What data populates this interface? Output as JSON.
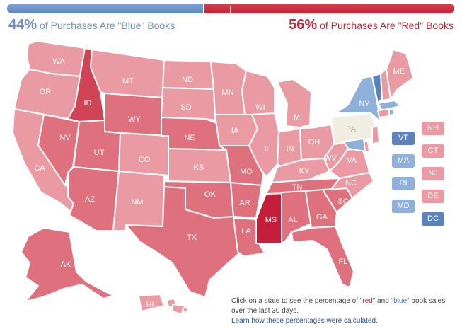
{
  "summary": {
    "blue_percent": "44%",
    "blue_text": "of Purchases Are \"Blue\" Books",
    "red_percent": "56%",
    "red_text": "of Purchases Are \"Red\" Books",
    "blue_fraction": 0.44
  },
  "colors": {
    "strong_blue": "#5b82bd",
    "light_blue": "#8fb0db",
    "neutral": "#efeee0",
    "light_red": "#e99aa2",
    "mid_red": "#de717d",
    "dark_red": "#d04455",
    "strongest_red": "#c41e3a"
  },
  "states": {
    "WA": "WA",
    "OR": "OR",
    "CA": "CA",
    "NV": "NV",
    "ID": "ID",
    "MT": "MT",
    "WY": "WY",
    "UT": "UT",
    "AZ": "AZ",
    "CO": "CO",
    "NM": "NM",
    "ND": "ND",
    "SD": "SD",
    "NE": "NE",
    "KS": "KS",
    "OK": "OK",
    "TX": "TX",
    "MN": "MN",
    "IA": "IA",
    "MO": "MO",
    "AR": "AR",
    "LA": "LA",
    "WI": "WI",
    "IL": "IL",
    "MS": "MS",
    "MI": "MI",
    "IN": "IN",
    "KY": "KY",
    "TN": "TN",
    "AL": "AL",
    "OH": "OH",
    "GA": "GA",
    "FL": "FL",
    "SC": "SC",
    "NC": "NC",
    "VA": "VA",
    "WV": "WV",
    "PA": "PA",
    "NY": "NY",
    "ME": "ME",
    "AK": "AK",
    "HI": "HI"
  },
  "side_boxes": {
    "VT": "VT",
    "MA": "MA",
    "RI": "RI",
    "MD": "MD",
    "NH": "NH",
    "CT": "CT",
    "NJ": "NJ",
    "DE": "DE",
    "DC": "DC"
  },
  "note": {
    "text_before": "Click on a state to see the percentage of ",
    "red_word": "\"red\"",
    "text_and": " and ",
    "blue_word": "\"blue\"",
    "text_after": " book sales over the last 30 days.",
    "link": "Learn how these percentages were calculated."
  }
}
